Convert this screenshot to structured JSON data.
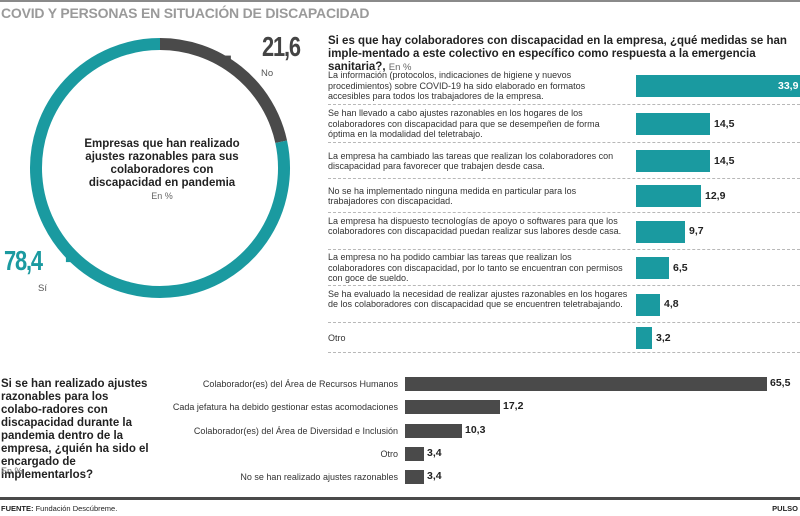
{
  "title": "COVID Y PERSONAS EN SITUACIÓN DE DISCAPACIDAD",
  "colors": {
    "teal": "#1a9aa0",
    "dark": "#4a4a4a",
    "title_gray": "#9a9a9a"
  },
  "chart_data": [
    {
      "type": "pie",
      "style": "donut",
      "title": "Empresas que han realizado ajustes razonables para sus colaboradores con discapacidad en pandemia",
      "unit": "En %",
      "slices": [
        {
          "label": "Sí",
          "value": 78.4,
          "display": "78,4",
          "color": "#1a9aa0"
        },
        {
          "label": "No",
          "value": 21.6,
          "display": "21,6",
          "color": "#4a4a4a"
        }
      ]
    },
    {
      "type": "bar",
      "orientation": "horizontal",
      "title": "Si es que hay colaboradores con discapacidad en la empresa, ¿qué medidas se han implementado a este colectivo en específico como respuesta a la emergencia sanitaria?,",
      "unit": "En %",
      "xlim": [
        0,
        33.9
      ],
      "categories": [
        "La información (protocolos, indicaciones de higiene y nuevos procedimientos) sobre COVID-19 ha sido elaborado en formatos accesibles para todos los trabajadores de la empresa.",
        "Se han llevado a cabo ajustes razonables en los hogares de los colaboradores con discapacidad para que se desempeñen de forma óptima en la modalidad del teletrabajo.",
        "La empresa ha cambiado las tareas que realizan los colaboradores con discapacidad para favorecer que trabajen desde casa.",
        "No se ha implementado ninguna medida en particular para los trabajadores con discapacidad.",
        "La empresa ha dispuesto tecnologías de apoyo o softwares para que los colaboradores con discapacidad puedan realizar sus labores desde casa.",
        "La empresa no ha podido cambiar las tareas que realizan los colaboradores con discapacidad, por lo tanto se encuentran con permisos con goce de sueldo.",
        "Se ha evaluado la necesidad de realizar ajustes razonables en los hogares de los colaboradores con discapacidad que se encuentren teletrabajando.",
        "Otro"
      ],
      "values": [
        33.9,
        14.5,
        14.5,
        12.9,
        9.7,
        6.5,
        4.8,
        3.2
      ],
      "labels": [
        "33,9",
        "14,5",
        "14,5",
        "12,9",
        "9,7",
        "6,5",
        "4,8",
        "3,2"
      ],
      "color": "#1a9aa0"
    },
    {
      "type": "bar",
      "orientation": "horizontal",
      "title": "Si se han realizado ajustes razonables para los colaboradores con discapacidad durante la pandemia dentro de la empresa, ¿quién ha sido el encargado de implementarlos?",
      "unit": "En %",
      "xlim": [
        0,
        65.5
      ],
      "categories": [
        "Colaborador(es) del Área de Recursos Humanos",
        "Cada jefatura ha debido gestionar estas acomodaciones",
        "Colaborador(es) del Área de Diversidad e Inclusión",
        "Otro",
        "No se han realizado ajustes razonables"
      ],
      "values": [
        65.5,
        17.2,
        10.3,
        3.4,
        3.4
      ],
      "labels": [
        "65,5",
        "17,2",
        "10,3",
        "3,4",
        "3,4"
      ],
      "color": "#4a4a4a"
    }
  ],
  "donut": {
    "center_title": "Empresas que han realizado ajustes razonables para sus colaboradores con discapacidad en pandemia",
    "unit": "En %",
    "no_value": "21,6",
    "no_label": "No",
    "si_value": "78,4",
    "si_label": "Sí"
  },
  "right": {
    "title": "Si es que hay colaboradores con discapacidad en la empresa, ¿qué medidas se han imple-mentado a este colectivo en específico como respuesta a la emergencia sanitaria?,",
    "unit": "En %"
  },
  "bottom": {
    "title": "Si se han realizado ajustes razonables para los colabo-radores con discapacidad durante la pandemia dentro de la empresa, ¿quién ha sido el encargado de implementarlos?",
    "unit": "En %"
  },
  "footer": {
    "source_label": "FUENTE:",
    "source_text": " Fundación Descúbreme.",
    "brand": "PULSO"
  }
}
